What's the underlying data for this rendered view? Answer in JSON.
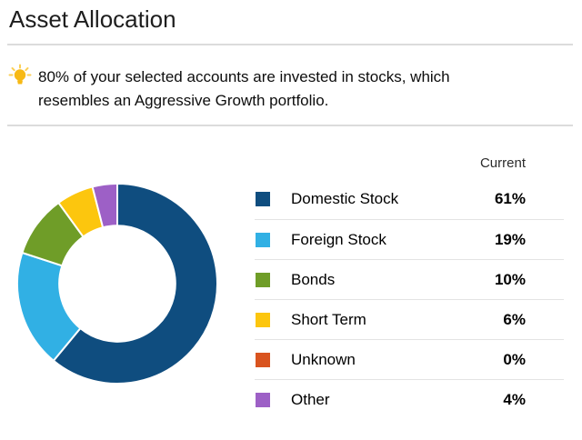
{
  "page": {
    "title": "Asset Allocation"
  },
  "tip": {
    "icon": "lightbulb-icon",
    "lines": [
      "80% of your selected accounts are invested in stocks, which",
      "resembles an Aggressive Growth portfolio."
    ]
  },
  "chart_data": {
    "type": "pie",
    "variant": "donut",
    "title": "Asset Allocation",
    "column_header": "Current",
    "categories": [
      "Domestic Stock",
      "Foreign Stock",
      "Bonds",
      "Short Term",
      "Unknown",
      "Other"
    ],
    "values": [
      61,
      19,
      10,
      6,
      0,
      4
    ],
    "unit": "%",
    "colors": [
      "#0f4d7f",
      "#31b0e4",
      "#6f9d28",
      "#fcc60e",
      "#d9541f",
      "#9d60c6"
    ],
    "start_angle_deg": 0,
    "direction": "clockwise",
    "inner_radius_ratio": 0.58,
    "gap_stroke_color": "#ffffff",
    "legend_position": "right"
  },
  "colors": {
    "divider": "#dcdcdc",
    "legend_divider": "#e4e4e4",
    "tip_icon_gold": "#f7b914",
    "tip_icon_ray": "#fbcf55"
  }
}
